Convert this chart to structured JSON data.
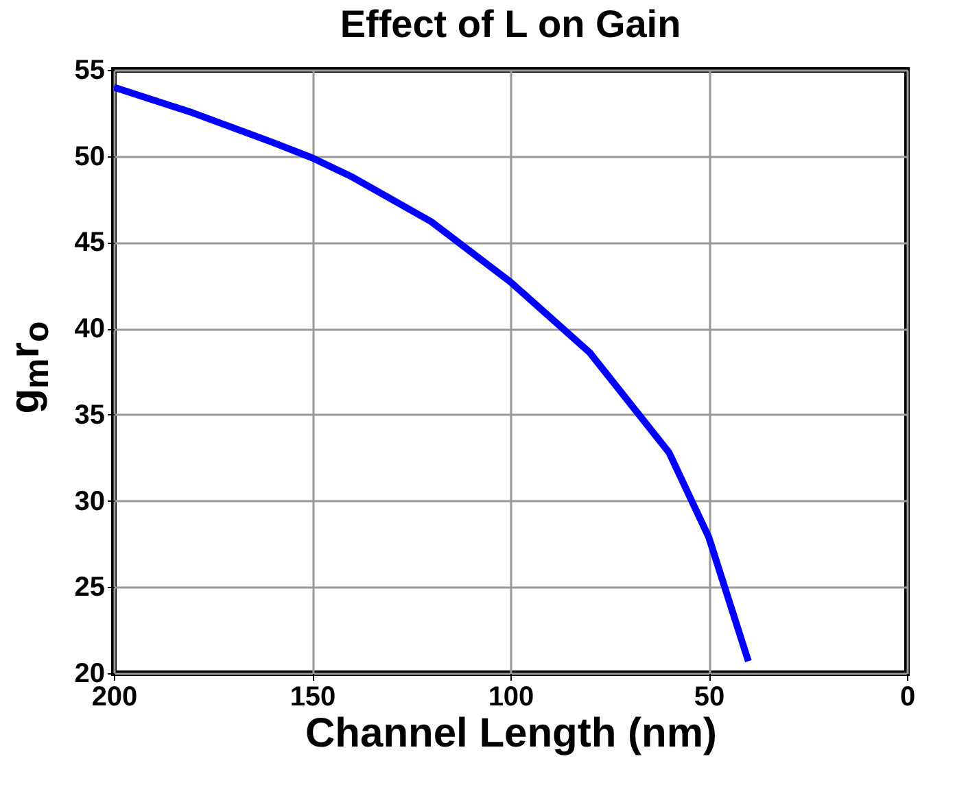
{
  "chart_data": {
    "type": "line",
    "title": "Effect of L on Gain",
    "xlabel": "Channel Length (nm)",
    "ylabel": "g$_{m}$r$_{o}$",
    "series": [
      {
        "color": "#0000ff",
        "x": [
          200,
          180,
          160,
          150,
          140,
          120,
          100,
          80,
          60,
          50,
          40
        ],
        "values": [
          54.0,
          52.5,
          50.8,
          49.9,
          48.8,
          46.2,
          42.7,
          38.6,
          32.8,
          27.9,
          20.7
        ]
      }
    ],
    "xlim": [
      200,
      0
    ],
    "xticks": [
      200,
      150,
      100,
      50,
      0
    ],
    "ylim": [
      20,
      55
    ],
    "yticks": [
      20,
      25,
      30,
      35,
      40,
      45,
      50,
      55
    ],
    "grid": true,
    "marker": "none",
    "line_style": "solid"
  }
}
